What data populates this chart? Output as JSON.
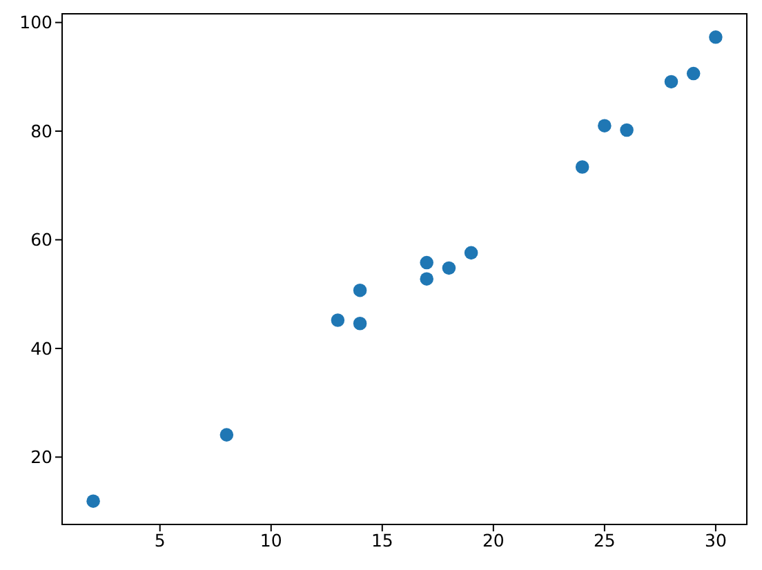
{
  "chart_data": {
    "type": "scatter",
    "x": [
      2,
      8,
      13,
      14,
      14,
      17,
      17,
      18,
      19,
      24,
      25,
      26,
      28,
      29,
      30
    ],
    "values": [
      11.9,
      24.1,
      45.2,
      50.7,
      44.6,
      55.8,
      52.8,
      54.8,
      57.6,
      73.4,
      81.0,
      80.2,
      89.1,
      90.6,
      97.3
    ],
    "color": "#1f77b4",
    "marker": "circle",
    "xlim": [
      0.6,
      31.4
    ],
    "ylim": [
      7.6,
      101.6
    ],
    "xticks": [
      5,
      10,
      15,
      20,
      25,
      30
    ],
    "yticks": [
      20,
      40,
      60,
      80,
      100
    ]
  }
}
